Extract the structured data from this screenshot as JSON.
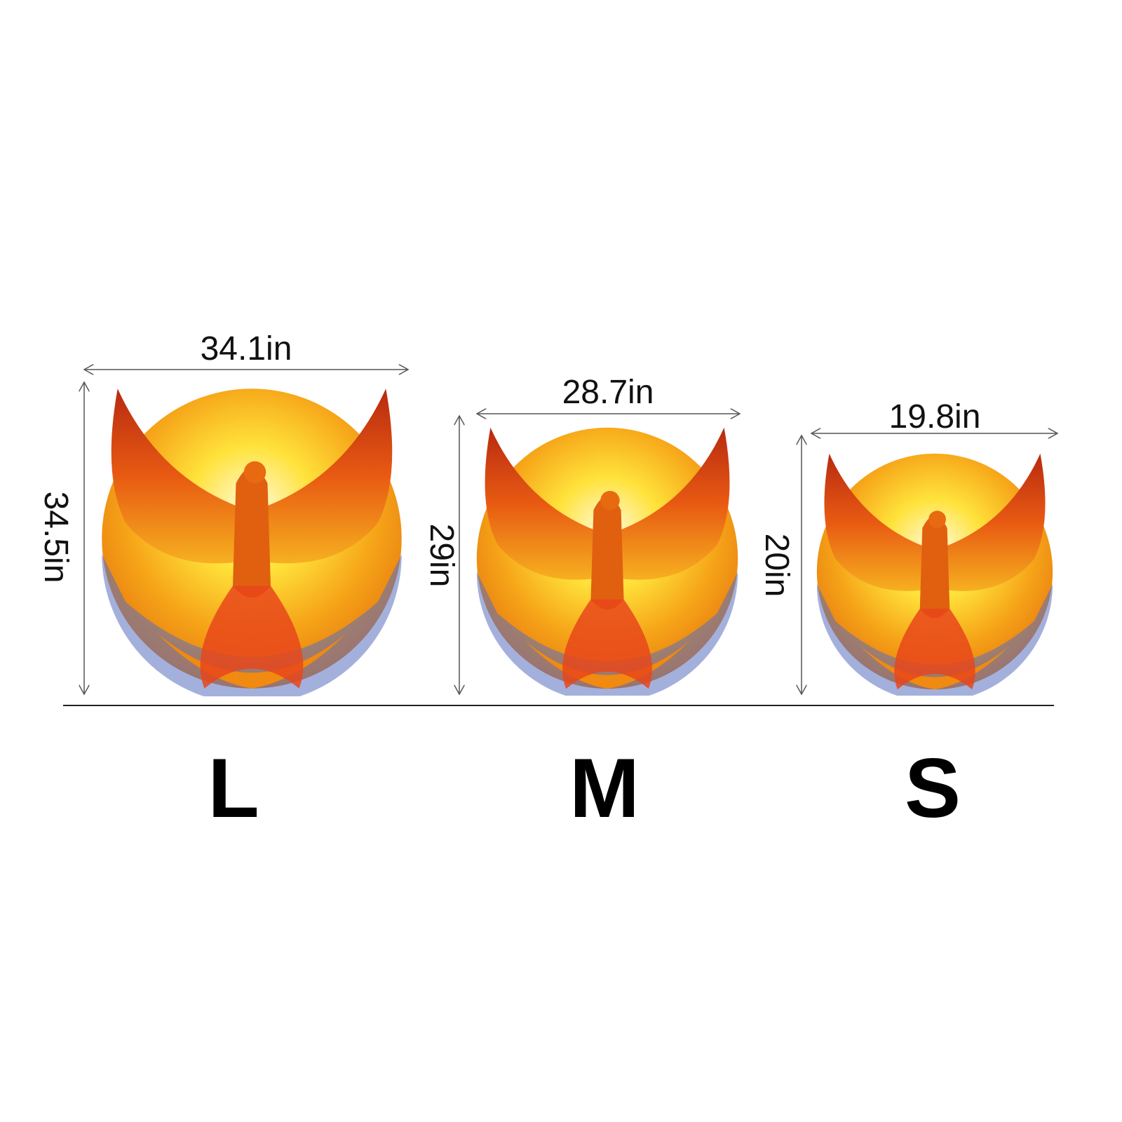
{
  "sizes": [
    {
      "label": "L",
      "width": "34.1in",
      "height": "34.5in"
    },
    {
      "label": "M",
      "width": "28.7in",
      "height": "29in"
    },
    {
      "label": "S",
      "width": "19.8in",
      "height": "20in"
    }
  ],
  "image_subject": "phoenix-round-puzzle",
  "colors": {
    "sun": "#ffe23a",
    "fire": "#f08a10",
    "wing": "#d83a10",
    "accent_blue": "#5a70c0",
    "dimension_line": "#555555"
  }
}
